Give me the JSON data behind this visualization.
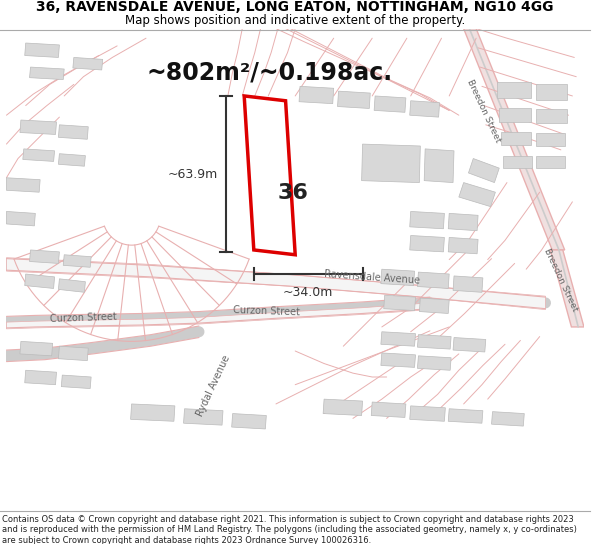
{
  "title_line1": "36, RAVENSDALE AVENUE, LONG EATON, NOTTINGHAM, NG10 4GG",
  "title_line2": "Map shows position and indicative extent of the property.",
  "area_text": "~802m²/~0.198ac.",
  "property_number": "36",
  "dim_width": "~34.0m",
  "dim_height": "~63.9m",
  "footer_text": "Contains OS data © Crown copyright and database right 2021. This information is subject to Crown copyright and database rights 2023 and is reproduced with the permission of HM Land Registry. The polygons (including the associated geometry, namely x, y co-ordinates) are subject to Crown copyright and database rights 2023 Ordnance Survey 100026316.",
  "bg_color": "#ffffff",
  "map_bg": "#ffffff",
  "road_stroke": "#e8b0b0",
  "road_fill": "#f5e8e8",
  "gray_road_color": "#cccccc",
  "building_fill": "#d8d8d8",
  "building_edge": "#bbbbbb",
  "property_outline_color": "#dd0000",
  "title_color": "#000000",
  "dim_color": "#333333",
  "label_color": "#666666",
  "street_label_ravensdale": "Ravensdale Avenue",
  "street_label_curzon": "Curzon Street",
  "street_label_ryall": "Rydal Avenue",
  "street_label_bredon": "Breedon Street"
}
